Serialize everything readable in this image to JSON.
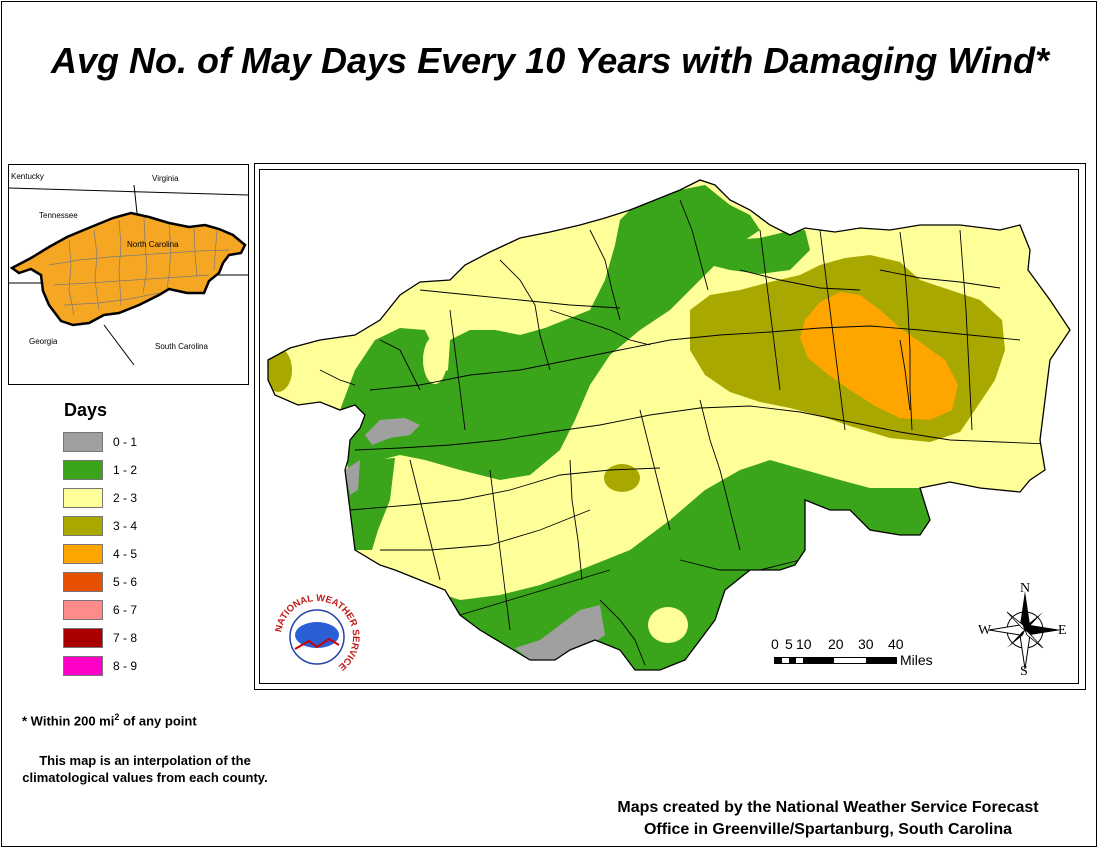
{
  "title": "Avg No. of May Days Every 10 Years with Damaging Wind*",
  "inset_map": {
    "labels": {
      "kentucky": "Kentucky",
      "virginia": "Virginia",
      "tennessee": "Tennessee",
      "north_carolina": "North Carolina",
      "georgia": "Georgia",
      "south_carolina": "South Carolina"
    },
    "highlight_color": "#F5A623"
  },
  "legend": {
    "title": "Days",
    "items": [
      {
        "range": "0 - 1",
        "color": "#A0A0A0"
      },
      {
        "range": "1 - 2",
        "color": "#3AA51A"
      },
      {
        "range": "2 - 3",
        "color": "#FFFF99"
      },
      {
        "range": "3 - 4",
        "color": "#A8A800"
      },
      {
        "range": "4 - 5",
        "color": "#FFA500"
      },
      {
        "range": "5 - 6",
        "color": "#E65000"
      },
      {
        "range": "6 - 7",
        "color": "#FF8A8A"
      },
      {
        "range": "7 - 8",
        "color": "#A80000"
      },
      {
        "range": "8 - 9",
        "color": "#FF00C8"
      }
    ]
  },
  "footnote": {
    "prefix": "* Within 200 mi",
    "superscript": "2",
    "suffix": " of any point"
  },
  "interpolation_note": "This map is an interpolation of the climatological values from each county.",
  "credits": {
    "line1": "Maps created by the National Weather Service Forecast",
    "line2": "Office in Greenville/Spartanburg, South Carolina"
  },
  "scale_bar": {
    "ticks": [
      "0",
      "5",
      "10",
      "20",
      "30",
      "40"
    ],
    "unit": "Miles"
  },
  "compass": {
    "n": "N",
    "s": "S",
    "e": "E",
    "w": "W"
  },
  "logo": {
    "text": "NATIONAL WEATHER SERVICE"
  }
}
